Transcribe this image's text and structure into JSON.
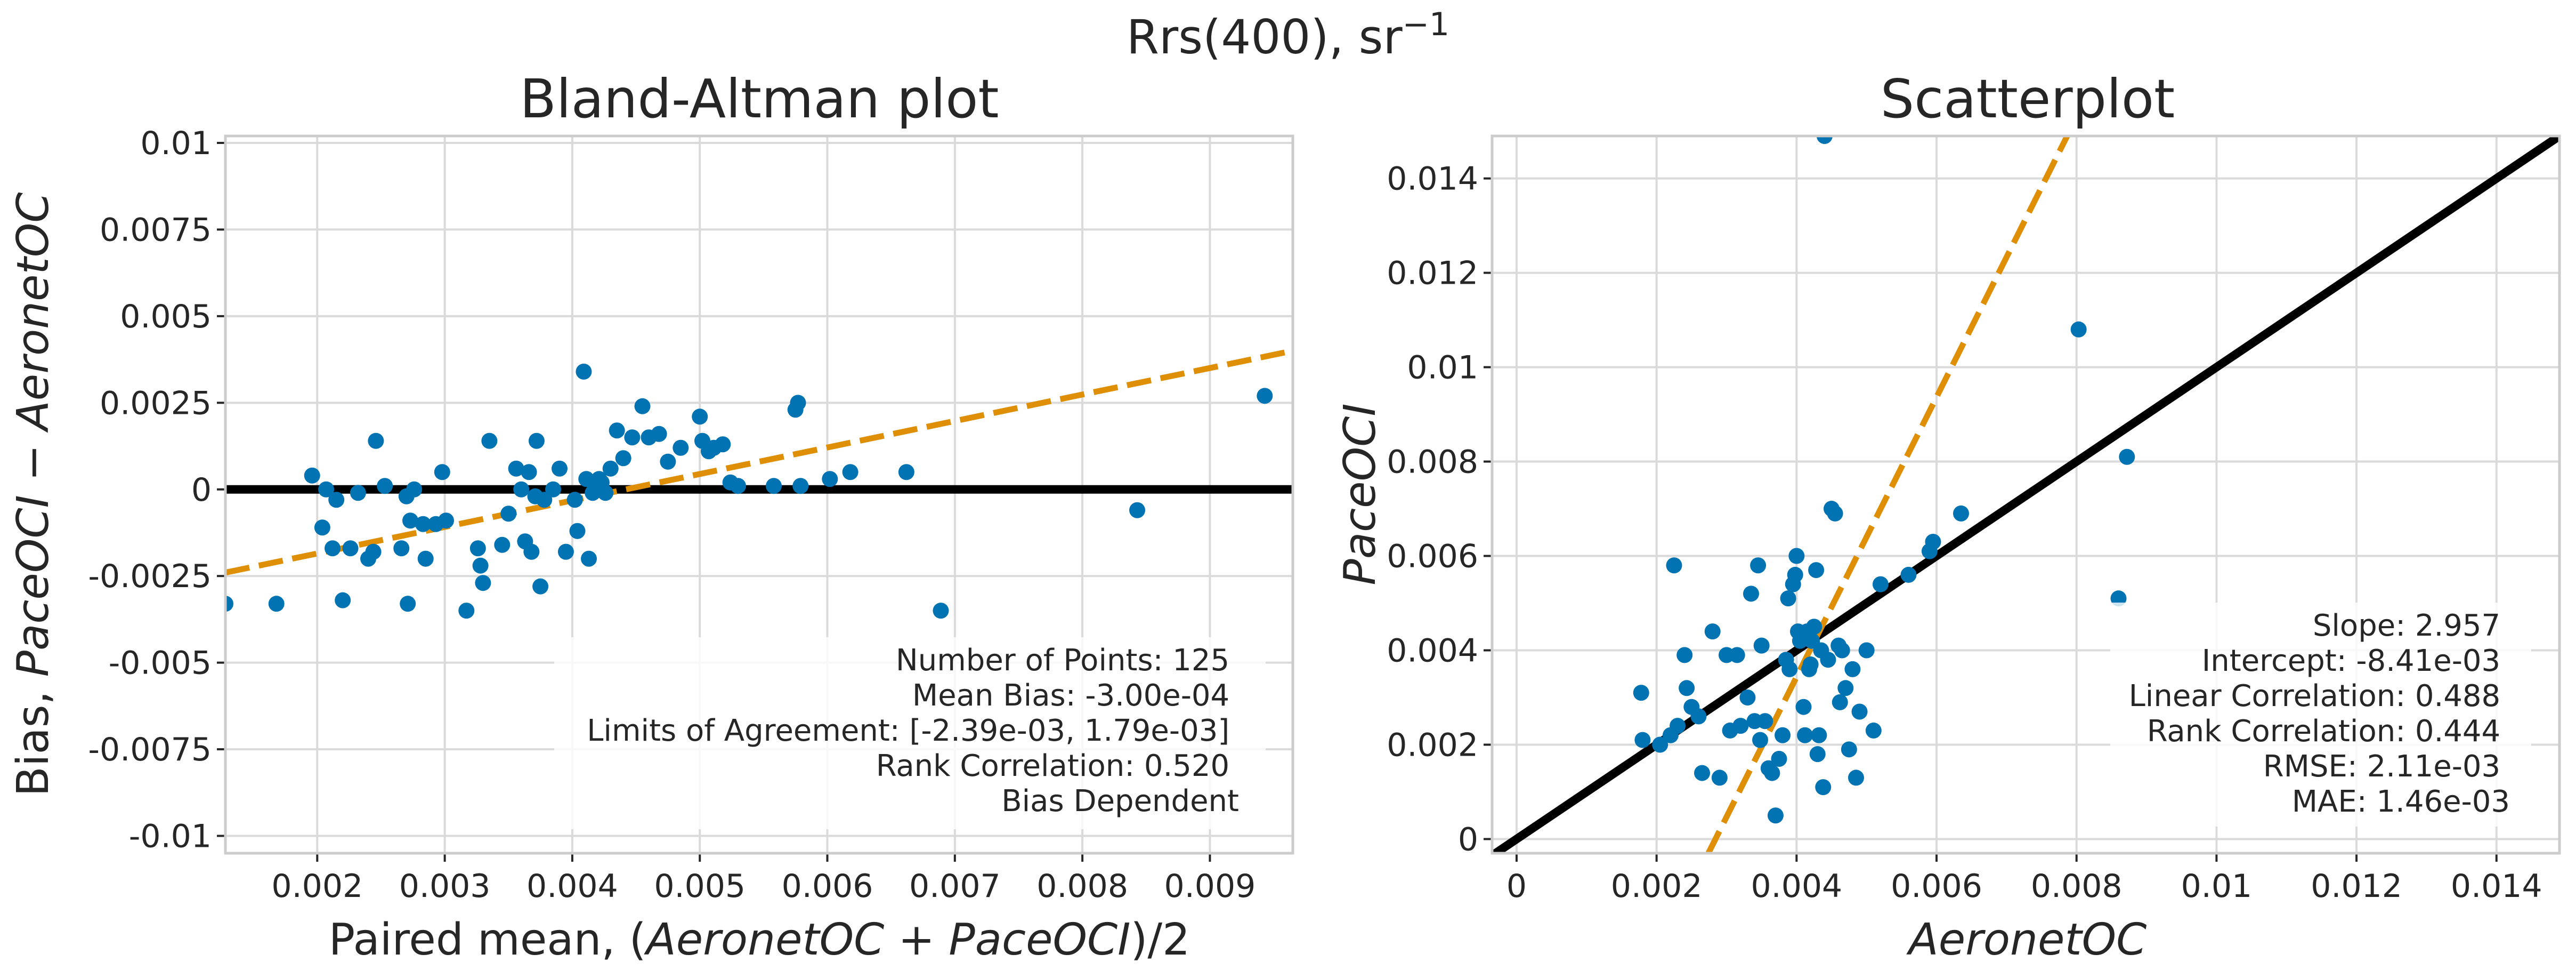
{
  "figure": {
    "suptitle": "Rrs(400), sr",
    "suptitle_sup": "−1"
  },
  "chart_data": [
    {
      "type": "scatter",
      "title": "Bland-Altman plot",
      "xlabel": {
        "prefix": "Paired mean, (",
        "term1": "AeronetOC",
        "op": " + ",
        "term2": "PaceOCI",
        "suffix": ")/2"
      },
      "ylabel": {
        "prefix": "Bias, ",
        "term1": "PaceOCI",
        "op": " − ",
        "term2": "AeronetOC"
      },
      "xlim": [
        0.00128,
        0.00965
      ],
      "ylim": [
        -0.0105,
        0.0102
      ],
      "xticks": [
        0.002,
        0.003,
        0.004,
        0.005,
        0.006,
        0.007,
        0.008,
        0.009
      ],
      "xtick_labels": [
        "0.002",
        "0.003",
        "0.004",
        "0.005",
        "0.006",
        "0.007",
        "0.008",
        "0.009"
      ],
      "yticks": [
        -0.01,
        -0.0075,
        -0.005,
        -0.0025,
        0,
        0.0025,
        0.005,
        0.0075,
        0.01
      ],
      "ytick_labels": [
        "-0.01",
        "-0.0075",
        "-0.005",
        "-0.0025",
        "0",
        "0.0025",
        "0.005",
        "0.0075",
        "0.01"
      ],
      "grid": true,
      "points": {
        "x": [
          0.00128,
          0.00168,
          0.00196,
          0.00204,
          0.00207,
          0.00212,
          0.00215,
          0.0022,
          0.00226,
          0.00232,
          0.0024,
          0.00244,
          0.00246,
          0.00253,
          0.00266,
          0.0027,
          0.00271,
          0.00273,
          0.00276,
          0.00283,
          0.00285,
          0.00293,
          0.00298,
          0.00301,
          0.00317,
          0.00326,
          0.00328,
          0.0033,
          0.00335,
          0.00345,
          0.0035,
          0.00356,
          0.0036,
          0.00363,
          0.00366,
          0.00368,
          0.00371,
          0.00372,
          0.00375,
          0.00378,
          0.00385,
          0.0039,
          0.00395,
          0.00402,
          0.00404,
          0.00409,
          0.00411,
          0.00413,
          0.00416,
          0.00419,
          0.00421,
          0.00423,
          0.00426,
          0.0043,
          0.00435,
          0.0044,
          0.00447,
          0.00455,
          0.0046,
          0.00468,
          0.00475,
          0.00485,
          0.005,
          0.00502,
          0.00507,
          0.00511,
          0.00518,
          0.00524,
          0.0053,
          0.00558,
          0.00575,
          0.00577,
          0.00579,
          0.00602,
          0.00618,
          0.00662,
          0.00689,
          0.00843,
          0.00943
        ],
        "y": [
          -0.0033,
          -0.0033,
          0.0004,
          -0.0011,
          0.0,
          -0.0017,
          -0.0003,
          -0.0032,
          -0.0017,
          -0.0001,
          -0.002,
          -0.0018,
          0.0014,
          0.0001,
          -0.0017,
          -0.0002,
          -0.0033,
          -0.0009,
          0.0,
          -0.001,
          -0.002,
          -0.001,
          0.0005,
          -0.0009,
          -0.0035,
          -0.0017,
          -0.0022,
          -0.0027,
          0.0014,
          -0.0016,
          -0.0007,
          0.0006,
          0.0,
          -0.0015,
          0.0005,
          -0.0018,
          -0.0002,
          0.0014,
          -0.0028,
          -0.0003,
          0.0,
          0.0006,
          -0.0018,
          -0.0003,
          -0.0012,
          0.0034,
          0.0003,
          -0.002,
          -0.0001,
          0.0001,
          0.0003,
          0.0002,
          -0.0001,
          0.0006,
          0.0017,
          0.0009,
          0.0015,
          0.0024,
          0.0015,
          0.0016,
          0.0008,
          0.0012,
          0.0021,
          0.0014,
          0.0011,
          0.0012,
          0.0013,
          0.0002,
          0.0001,
          0.0001,
          0.0023,
          0.0025,
          0.0001,
          0.0003,
          0.0005,
          0.0005,
          -0.0035,
          -0.0006,
          0.0027
        ]
      },
      "zero_line": {
        "y": 0
      },
      "fit_line": {
        "x": [
          0.00128,
          0.00965
        ],
        "y": [
          -0.0024,
          0.004
        ]
      },
      "stats": [
        "Number of Points: 125",
        "Mean Bias: -3.00e-04",
        "Limits of Agreement: [-2.39e-03, 1.79e-03]",
        "Rank Correlation: 0.520",
        "Bias Dependent"
      ],
      "colors": {
        "points": "#0173b2",
        "fit": "#de8f05",
        "reference": "#000000"
      }
    },
    {
      "type": "scatter",
      "title": "Scatterplot",
      "xlabel": "AeronetOC",
      "ylabel": "PaceOCI",
      "xlim": [
        -0.00035,
        0.0149
      ],
      "ylim": [
        -0.0003,
        0.0149
      ],
      "xticks": [
        0,
        0.002,
        0.004,
        0.006,
        0.008,
        0.01,
        0.012,
        0.014
      ],
      "xtick_labels": [
        "0",
        "0.002",
        "0.004",
        "0.006",
        "0.008",
        "0.01",
        "0.012",
        "0.014"
      ],
      "yticks": [
        0,
        0.002,
        0.004,
        0.006,
        0.008,
        0.01,
        0.012,
        0.014
      ],
      "ytick_labels": [
        "0",
        "0.002",
        "0.004",
        "0.006",
        "0.008",
        "0.01",
        "0.012",
        "0.014"
      ],
      "grid": true,
      "points": {
        "x": [
          0.00178,
          0.0018,
          0.00205,
          0.0022,
          0.00225,
          0.0023,
          0.0024,
          0.00243,
          0.0025,
          0.0026,
          0.00265,
          0.0028,
          0.0029,
          0.003,
          0.00305,
          0.00315,
          0.0032,
          0.0033,
          0.00335,
          0.0034,
          0.00345,
          0.00348,
          0.0035,
          0.00355,
          0.0036,
          0.00365,
          0.0037,
          0.00375,
          0.0038,
          0.00385,
          0.00388,
          0.0039,
          0.00395,
          0.00398,
          0.004,
          0.00402,
          0.00405,
          0.0041,
          0.00412,
          0.00415,
          0.00418,
          0.0042,
          0.00422,
          0.00425,
          0.00428,
          0.0043,
          0.00432,
          0.00435,
          0.00438,
          0.0044,
          0.00445,
          0.0045,
          0.00455,
          0.0046,
          0.00462,
          0.00465,
          0.0047,
          0.00475,
          0.0048,
          0.00485,
          0.0049,
          0.005,
          0.0051,
          0.0052,
          0.0056,
          0.0059,
          0.00595,
          0.00635,
          0.00803,
          0.0086,
          0.00872
        ],
        "y": [
          0.0031,
          0.0021,
          0.002,
          0.0022,
          0.0058,
          0.0024,
          0.0039,
          0.0032,
          0.0028,
          0.0026,
          0.0014,
          0.0044,
          0.0013,
          0.0039,
          0.0023,
          0.0039,
          0.0024,
          0.003,
          0.0052,
          0.0025,
          0.0058,
          0.0021,
          0.0041,
          0.0025,
          0.0015,
          0.0014,
          0.0005,
          0.0017,
          0.0022,
          0.0038,
          0.0051,
          0.0036,
          0.0054,
          0.0056,
          0.006,
          0.0044,
          0.0042,
          0.0028,
          0.0022,
          0.0044,
          0.0036,
          0.0037,
          0.0042,
          0.0045,
          0.0057,
          0.0018,
          0.0022,
          0.004,
          0.0011,
          0.0149,
          0.0038,
          0.007,
          0.0069,
          0.0041,
          0.0029,
          0.004,
          0.0032,
          0.0019,
          0.0036,
          0.0013,
          0.0027,
          0.004,
          0.0023,
          0.0054,
          0.0056,
          0.0061,
          0.0063,
          0.0069,
          0.0108,
          0.0051,
          0.0081
        ]
      },
      "identity_line": {
        "x": [
          -0.00035,
          0.0149
        ],
        "y": [
          -0.00035,
          0.0149
        ]
      },
      "fit_line": {
        "x": [
          0.00274,
          0.0079
        ],
        "y": [
          -0.0003,
          0.015
        ]
      },
      "stats": [
        "Slope: 2.957",
        "Intercept: -8.41e-03",
        "Linear Correlation: 0.488",
        "Rank Correlation: 0.444",
        "RMSE: 2.11e-03",
        "MAE: 1.46e-03"
      ],
      "colors": {
        "points": "#0173b2",
        "fit": "#de8f05",
        "reference": "#000000"
      }
    }
  ]
}
